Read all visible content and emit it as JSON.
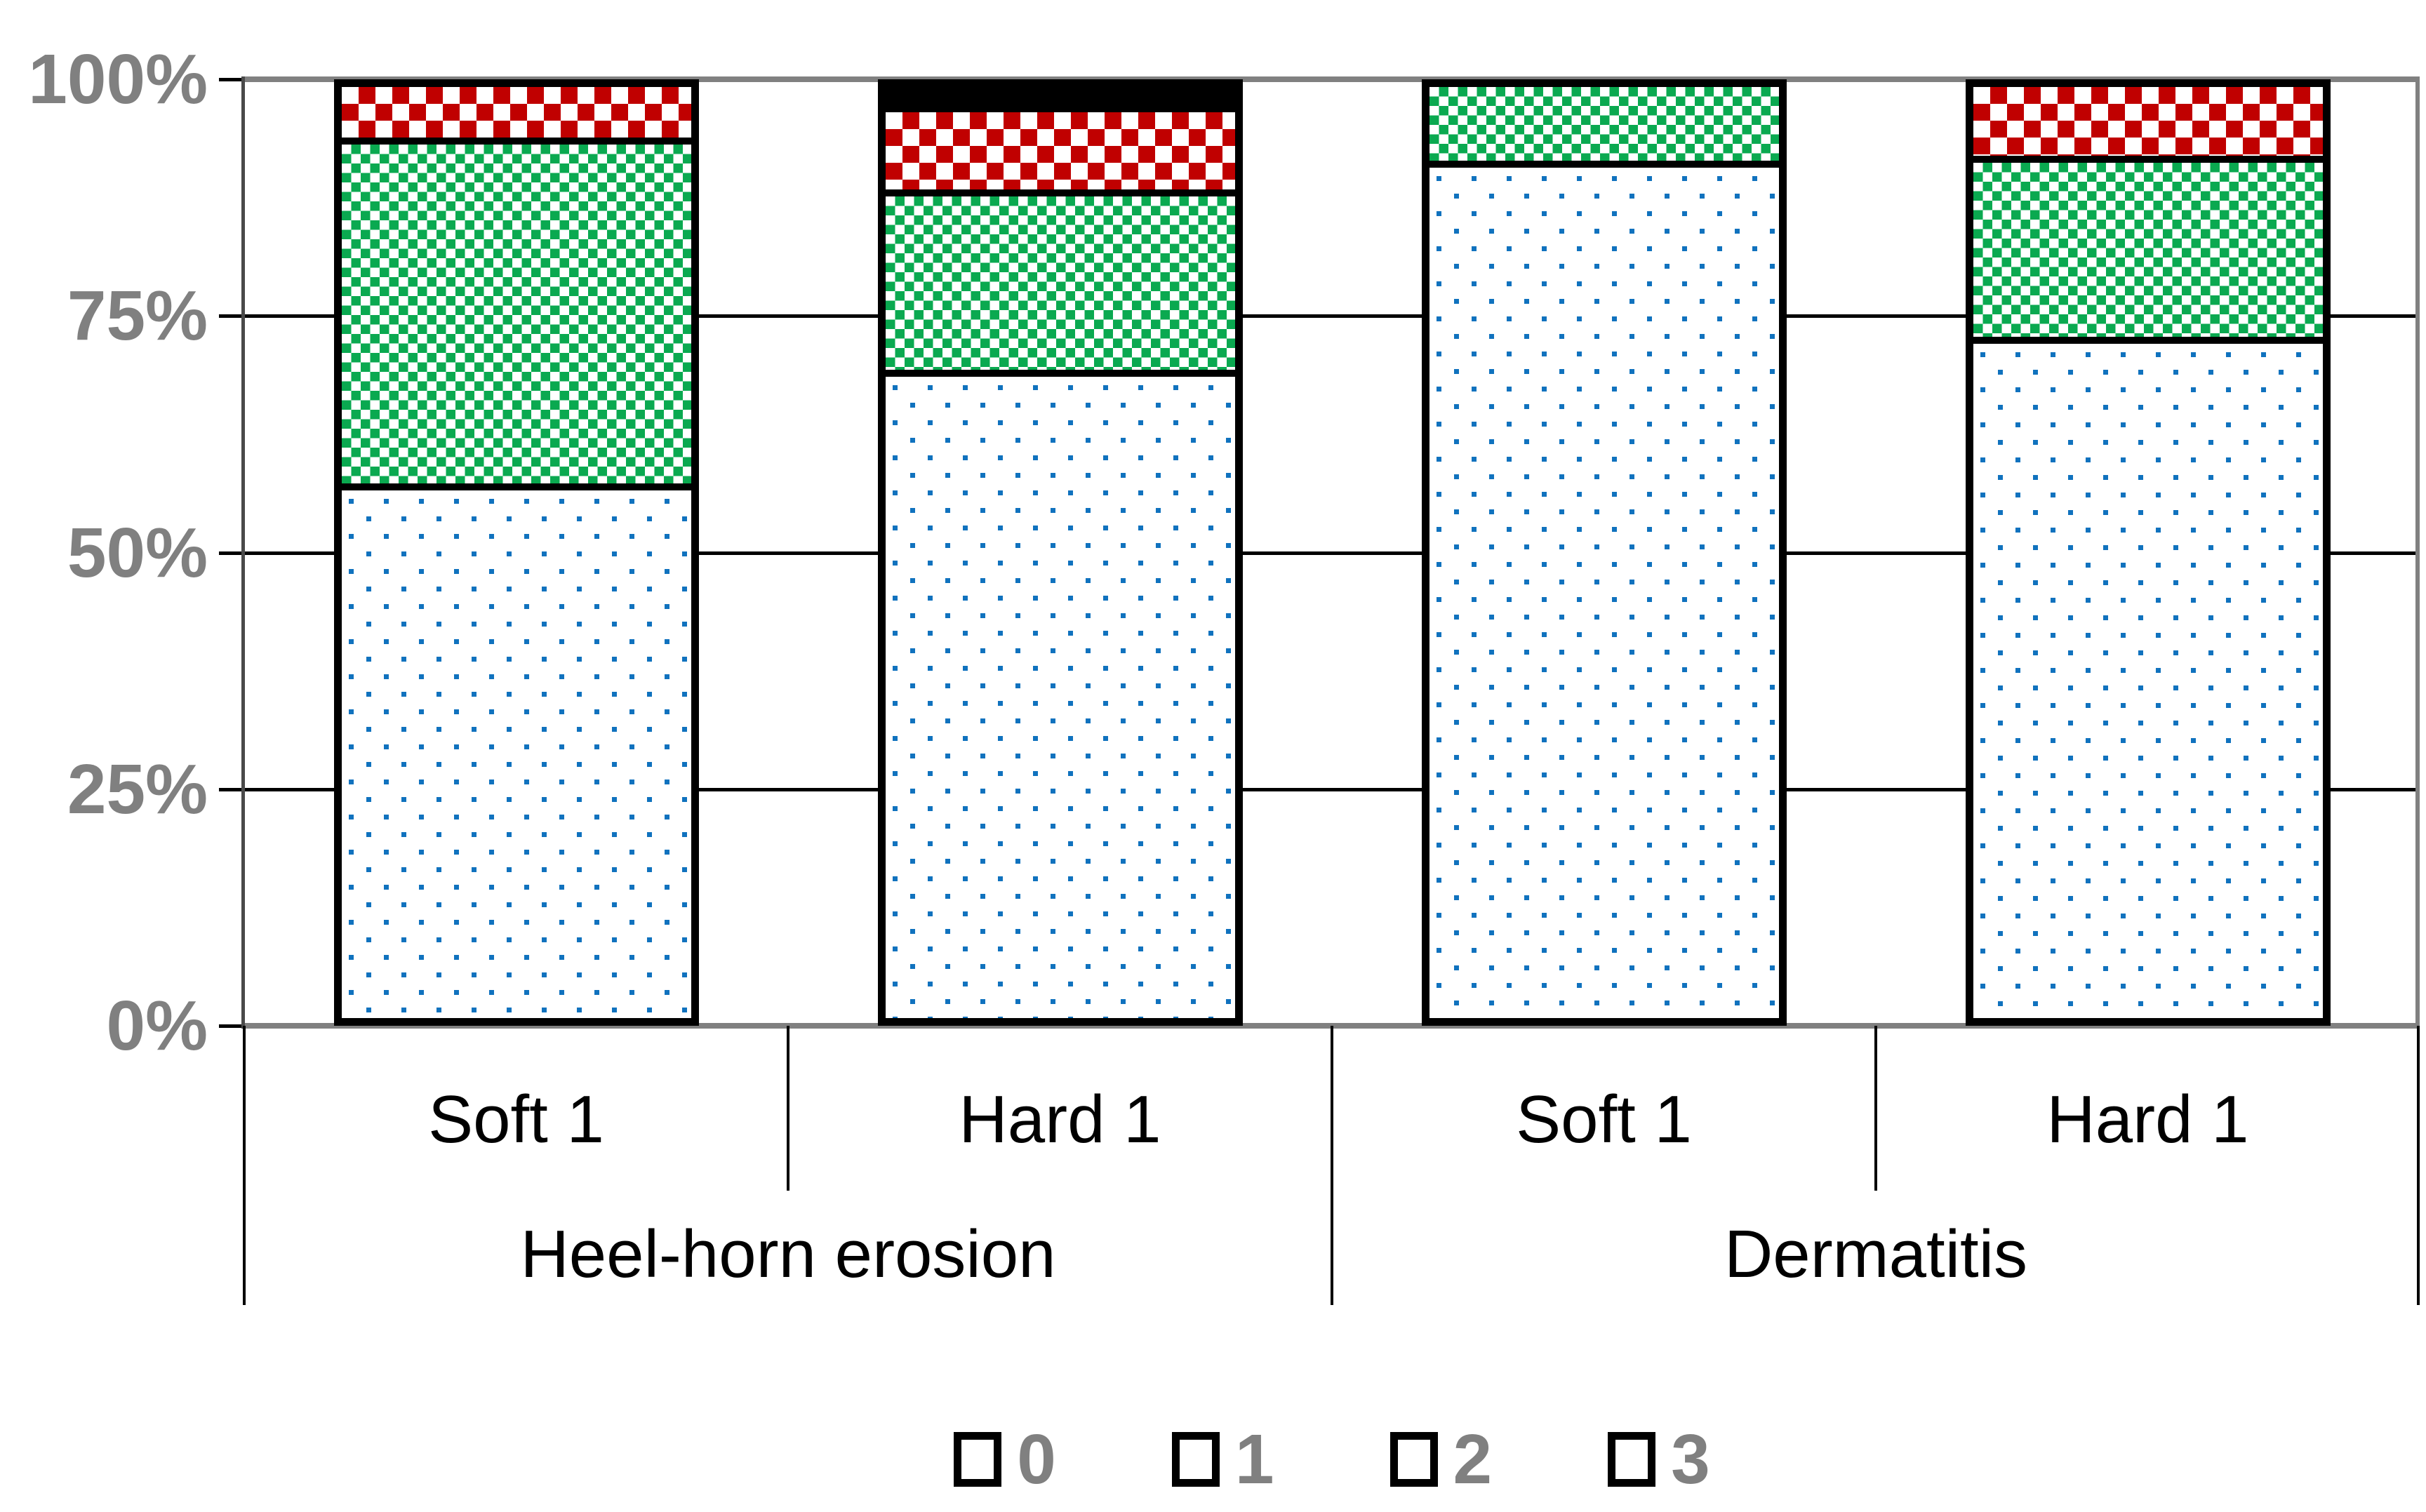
{
  "figure": {
    "background": "#ffffff"
  },
  "colors": {
    "dot_blue": "#1072BE",
    "checker_green": "#0AA950",
    "checker_red": "#C00000",
    "solid_black": "#000000",
    "axis_label_gray": "#808080",
    "gridline_black": "#000000"
  },
  "chart_data": {
    "type": "bar",
    "stacked": true,
    "units": "percent",
    "ylim": [
      0,
      100
    ],
    "grid": "horizontal",
    "y_ticks": [
      {
        "value": 0,
        "label": "0%"
      },
      {
        "value": 25,
        "label": "25%"
      },
      {
        "value": 50,
        "label": "50%"
      },
      {
        "value": 75,
        "label": "75%"
      },
      {
        "value": 100,
        "label": "100%"
      }
    ],
    "groups": [
      {
        "label": "Heel-horn erosion",
        "categories": [
          "Soft 1",
          "Hard 1"
        ]
      },
      {
        "label": "Dermatitis",
        "categories": [
          "Soft 1",
          "Hard 1"
        ]
      }
    ],
    "series": [
      {
        "name": "0",
        "pattern": "blue-dots",
        "values": [
          57.5,
          70.5,
          92,
          73.5
        ]
      },
      {
        "name": "1",
        "pattern": "green-checker",
        "values": [
          37.0,
          19.0,
          8,
          19.0
        ]
      },
      {
        "name": "2",
        "pattern": "red-checker",
        "values": [
          5.5,
          8.5,
          0,
          7.5
        ]
      },
      {
        "name": "3",
        "pattern": "solid-black",
        "values": [
          0.0,
          2.0,
          0,
          0.0
        ]
      }
    ],
    "legend": {
      "position": "bottom",
      "entries": [
        {
          "label": "0",
          "pattern": "blue-dots"
        },
        {
          "label": "1",
          "pattern": "green-checker"
        },
        {
          "label": "2",
          "pattern": "red-checker"
        },
        {
          "label": "3",
          "pattern": "solid-black"
        }
      ]
    }
  }
}
